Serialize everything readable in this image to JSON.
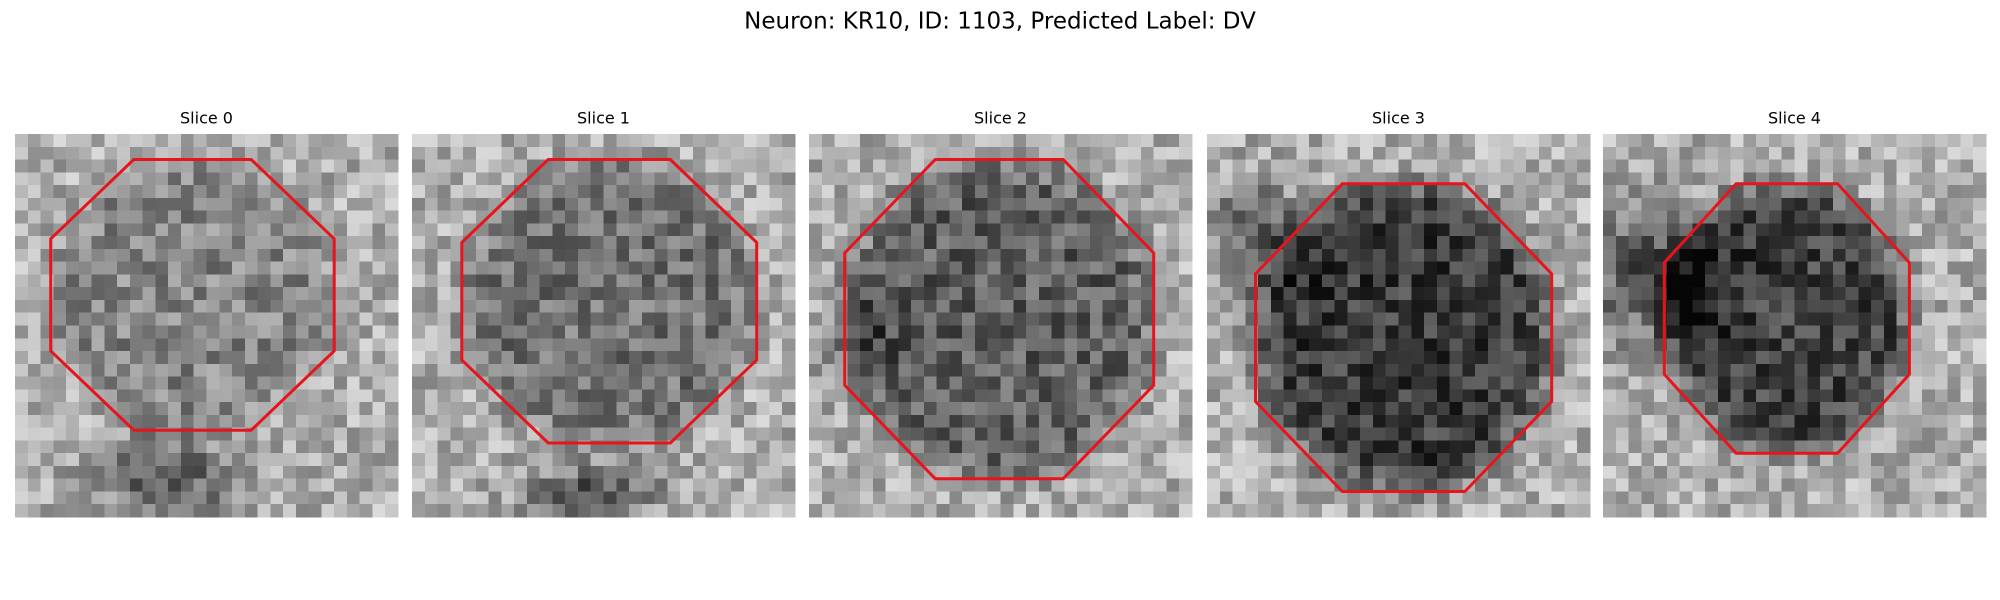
{
  "title": "Neuron: KR10, ID: 1103, Predicted Label: DV",
  "panels": [
    {
      "title": "Slice 0"
    },
    {
      "title": "Slice 1"
    },
    {
      "title": "Slice 2"
    },
    {
      "title": "Slice 3"
    },
    {
      "title": "Slice 4"
    }
  ]
}
